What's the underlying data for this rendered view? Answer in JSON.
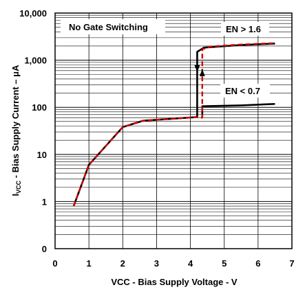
{
  "chart_data": {
    "type": "line",
    "title": "",
    "xlabel": "VCC - Bias Supply Voltage - V",
    "ylabel": {
      "main": "I",
      "subscript": "VCC",
      "rest": " - Bias Supply Current – μA"
    },
    "xlim": [
      0,
      7
    ],
    "ylim_log": [
      0.1,
      10000
    ],
    "log_y": true,
    "grid": true,
    "x_ticks": [
      "0",
      "1",
      "2",
      "3",
      "4",
      "5",
      "6",
      "7"
    ],
    "y_ticks": [
      "0",
      "1",
      "10",
      "100",
      "1,000",
      "10,000"
    ],
    "annotations": {
      "box": "No Gate Switching",
      "en_high": "EN > 1.6",
      "en_low": "EN < 0.7"
    },
    "colors": {
      "en_high_series": "#d40000",
      "en_low_series": "#000000"
    },
    "series": [
      {
        "name": "EN > 1.6",
        "style": "dashed",
        "color": "#d40000",
        "points": [
          [
            0.55,
            0.8
          ],
          [
            1.0,
            6
          ],
          [
            2.0,
            38
          ],
          [
            2.6,
            52
          ],
          [
            4.2,
            62
          ],
          [
            4.35,
            60
          ],
          [
            4.35,
            1700
          ],
          [
            4.6,
            1950
          ],
          [
            5.5,
            2150
          ],
          [
            6.5,
            2300
          ]
        ]
      },
      {
        "name": "EN < 0.7",
        "style": "solid",
        "color": "#000000",
        "points": [
          [
            0.55,
            0.8
          ],
          [
            1.0,
            6
          ],
          [
            2.0,
            38
          ],
          [
            2.6,
            52
          ],
          [
            4.2,
            62
          ],
          [
            4.2,
            1500
          ],
          [
            4.4,
            1850
          ],
          [
            5.5,
            2100
          ],
          [
            6.5,
            2250
          ]
        ]
      },
      {
        "name": "EN < 0.7",
        "style": "solid",
        "color": "#000000",
        "points": [
          [
            4.35,
            62
          ],
          [
            4.35,
            105
          ],
          [
            5.5,
            110
          ],
          [
            6.5,
            118
          ]
        ]
      }
    ]
  }
}
